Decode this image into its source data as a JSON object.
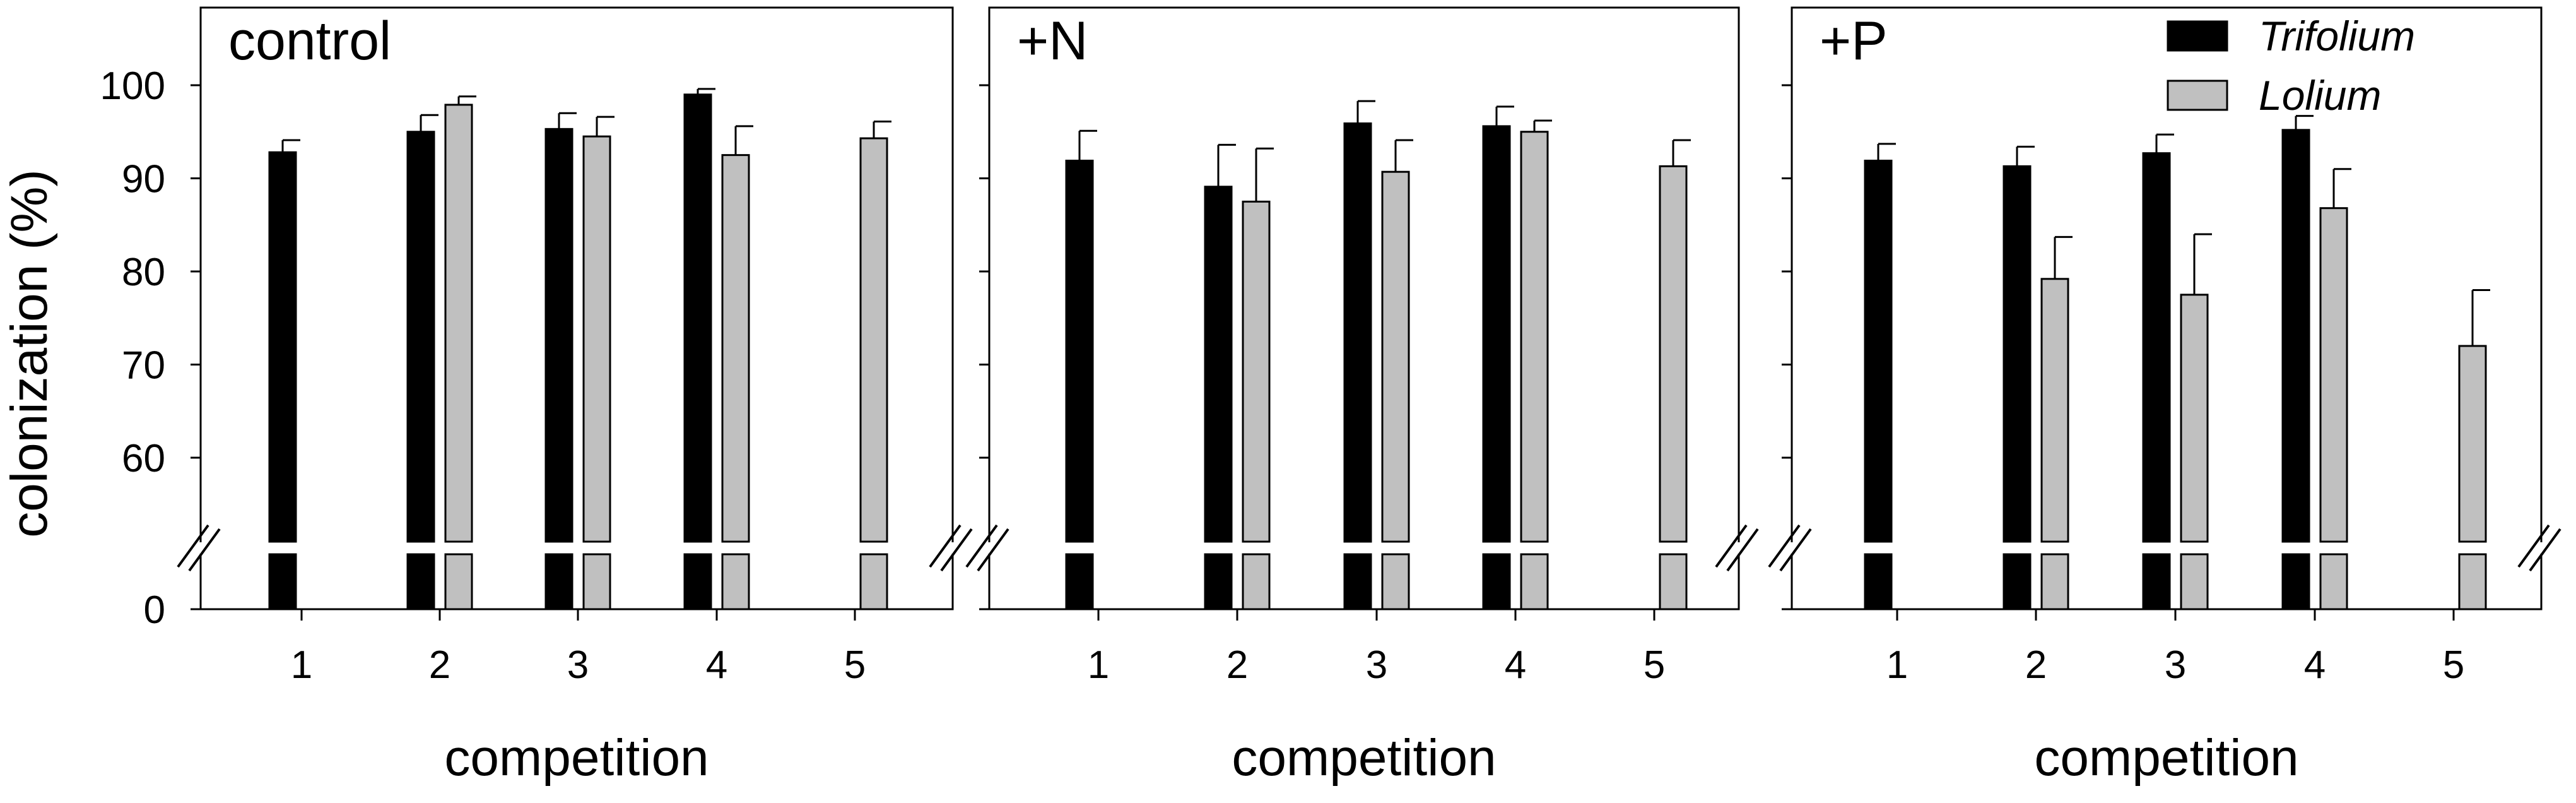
{
  "legend": {
    "position": "top-right",
    "items": [
      {
        "name": "Trifolium",
        "color": "#000000"
      },
      {
        "name": "Lolium",
        "color": "#c0c0c0"
      }
    ]
  },
  "axes": {
    "ylabel": "colonization (%)",
    "xlabel": "competition",
    "y_ticks": [
      60,
      70,
      80,
      90,
      100
    ],
    "y_zero_label": "0",
    "x_ticks": [
      "1",
      "2",
      "3",
      "4",
      "5"
    ]
  },
  "colors": {
    "trifolium": "#000000",
    "lolium": "#c0c0c0"
  },
  "chart_data": [
    {
      "type": "bar",
      "title": "control",
      "xlabel": "competition",
      "ylabel": "colonization (%)",
      "ylim": [
        50,
        108
      ],
      "y_axis_break": true,
      "grid": false,
      "categories": [
        "1",
        "2",
        "3",
        "4",
        "5"
      ],
      "series": [
        {
          "name": "Trifolium",
          "values": [
            92.8,
            95.0,
            95.3,
            99.0,
            null
          ],
          "errors": [
            1.3,
            1.8,
            1.7,
            0.6,
            null
          ]
        },
        {
          "name": "Lolium",
          "values": [
            null,
            97.9,
            94.5,
            92.5,
            94.3
          ],
          "errors": [
            null,
            0.9,
            2.1,
            3.1,
            1.8
          ]
        }
      ]
    },
    {
      "type": "bar",
      "title": "+N",
      "xlabel": "competition",
      "ylabel": "colonization (%)",
      "ylim": [
        50,
        108
      ],
      "y_axis_break": true,
      "grid": false,
      "categories": [
        "1",
        "2",
        "3",
        "4",
        "5"
      ],
      "series": [
        {
          "name": "Trifolium",
          "values": [
            91.9,
            89.1,
            95.9,
            95.6,
            null
          ],
          "errors": [
            3.2,
            4.5,
            2.4,
            2.1,
            null
          ]
        },
        {
          "name": "Lolium",
          "values": [
            null,
            87.5,
            90.7,
            95.0,
            91.3
          ],
          "errors": [
            null,
            5.7,
            3.4,
            1.2,
            2.8
          ]
        }
      ]
    },
    {
      "type": "bar",
      "title": "+P",
      "xlabel": "competition",
      "ylabel": "colonization (%)",
      "ylim": [
        50,
        108
      ],
      "y_axis_break": true,
      "grid": false,
      "categories": [
        "1",
        "2",
        "3",
        "4",
        "5"
      ],
      "series": [
        {
          "name": "Trifolium",
          "values": [
            91.9,
            91.3,
            92.7,
            95.2,
            null
          ],
          "errors": [
            1.8,
            2.1,
            2.0,
            1.5,
            null
          ]
        },
        {
          "name": "Lolium",
          "values": [
            null,
            79.2,
            77.5,
            86.8,
            72.0
          ],
          "errors": [
            null,
            4.5,
            6.5,
            4.2,
            6.0
          ]
        }
      ]
    }
  ]
}
